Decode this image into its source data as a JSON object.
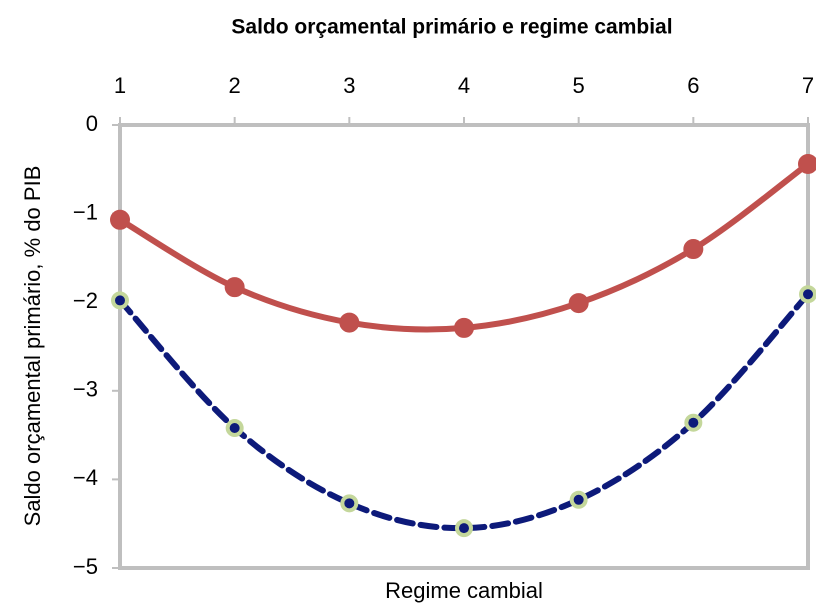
{
  "chart_data": {
    "type": "line",
    "title": "Saldo orçamental primário e regime cambial",
    "x_label": "Regime cambial",
    "y_label": "Saldo orçamental primário, % do PIB",
    "x": [
      1,
      2,
      3,
      4,
      5,
      6,
      7
    ],
    "xlim": [
      1,
      7
    ],
    "xticks": [
      1,
      2,
      3,
      4,
      5,
      6,
      7
    ],
    "x_axis_position": "top",
    "ylim": [
      -5,
      0
    ],
    "yticks": [
      {
        "value": -5,
        "label": "−5"
      },
      {
        "value": -4,
        "label": "−4"
      },
      {
        "value": -3,
        "label": "−3"
      },
      {
        "value": -2,
        "label": "−2"
      },
      {
        "value": -1,
        "label": "−1"
      },
      0
    ],
    "grid": false,
    "series": [
      {
        "color": "#c0504d",
        "marker_color": "#c0504d",
        "dashed": false,
        "values": [
          -1.07,
          -1.83,
          -2.23,
          -2.29,
          -2.01,
          -1.4,
          -0.44
        ]
      },
      {
        "color": "#0d1a7a",
        "marker_color": "#c4d79b",
        "dashed": true,
        "values": [
          -1.98,
          -3.42,
          -4.27,
          -4.55,
          -4.23,
          -3.36,
          -1.91
        ]
      }
    ]
  }
}
